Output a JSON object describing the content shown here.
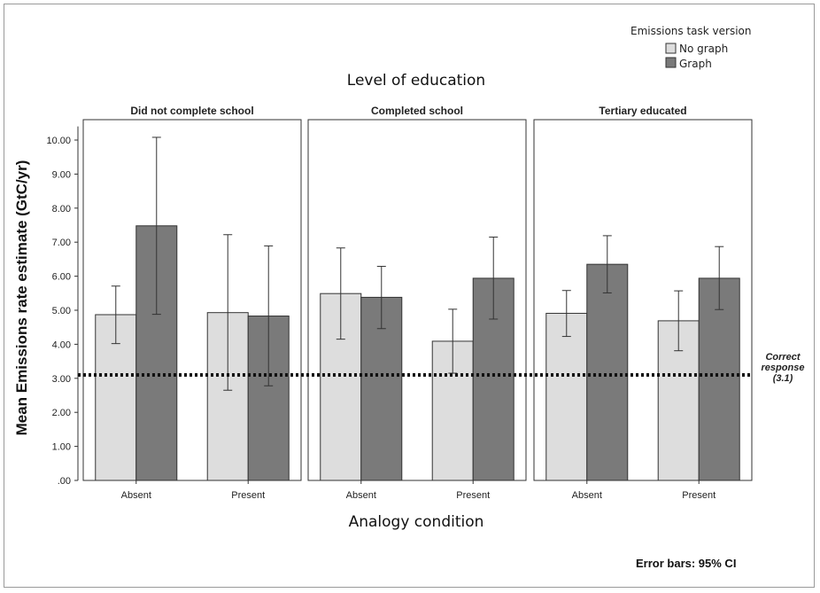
{
  "chart_data": {
    "type": "bar",
    "title": "Level of education",
    "xlabel": "Analogy condition",
    "ylabel": "Mean Emissions rate estimate (GtC/yr)",
    "ylim": [
      0,
      10.5
    ],
    "yticks": [
      ".00",
      "1.00",
      "2.00",
      "3.00",
      "4.00",
      "5.00",
      "6.00",
      "7.00",
      "8.00",
      "9.00",
      "10.00"
    ],
    "legend": {
      "title": "Emissions task version",
      "position": "top-right",
      "entries": [
        {
          "name": "No graph",
          "color": "#dddddd"
        },
        {
          "name": "Graph",
          "color": "#7a7a7a"
        }
      ]
    },
    "panels": [
      {
        "name": "Did not complete school",
        "categories": [
          "Absent",
          "Present"
        ],
        "series": [
          {
            "name": "No graph",
            "values": [
              4.87,
              4.93
            ],
            "ci_low": [
              4.02,
              2.65
            ],
            "ci_high": [
              5.71,
              7.22
            ]
          },
          {
            "name": "Graph",
            "values": [
              7.48,
              4.83
            ],
            "ci_low": [
              4.88,
              2.78
            ],
            "ci_high": [
              10.08,
              6.89
            ]
          }
        ]
      },
      {
        "name": "Completed school",
        "categories": [
          "Absent",
          "Present"
        ],
        "series": [
          {
            "name": "No graph",
            "values": [
              5.49,
              4.09
            ],
            "ci_low": [
              4.15,
              3.15
            ],
            "ci_high": [
              6.83,
              5.03
            ]
          },
          {
            "name": "Graph",
            "values": [
              5.38,
              5.94
            ],
            "ci_low": [
              4.46,
              4.74
            ],
            "ci_high": [
              6.29,
              7.15
            ]
          }
        ]
      },
      {
        "name": "Tertiary educated",
        "categories": [
          "Absent",
          "Present"
        ],
        "series": [
          {
            "name": "No graph",
            "values": [
              4.91,
              4.69
            ],
            "ci_low": [
              4.23,
              3.81
            ],
            "ci_high": [
              5.58,
              5.57
            ]
          },
          {
            "name": "Graph",
            "values": [
              6.35,
              5.94
            ],
            "ci_low": [
              5.51,
              5.02
            ],
            "ci_high": [
              7.19,
              6.87
            ]
          }
        ]
      }
    ],
    "reference_line": {
      "value": 3.1,
      "label_lines": [
        "Correct",
        "response",
        "(3.1)"
      ]
    },
    "footer": "Error bars: 95% CI"
  }
}
